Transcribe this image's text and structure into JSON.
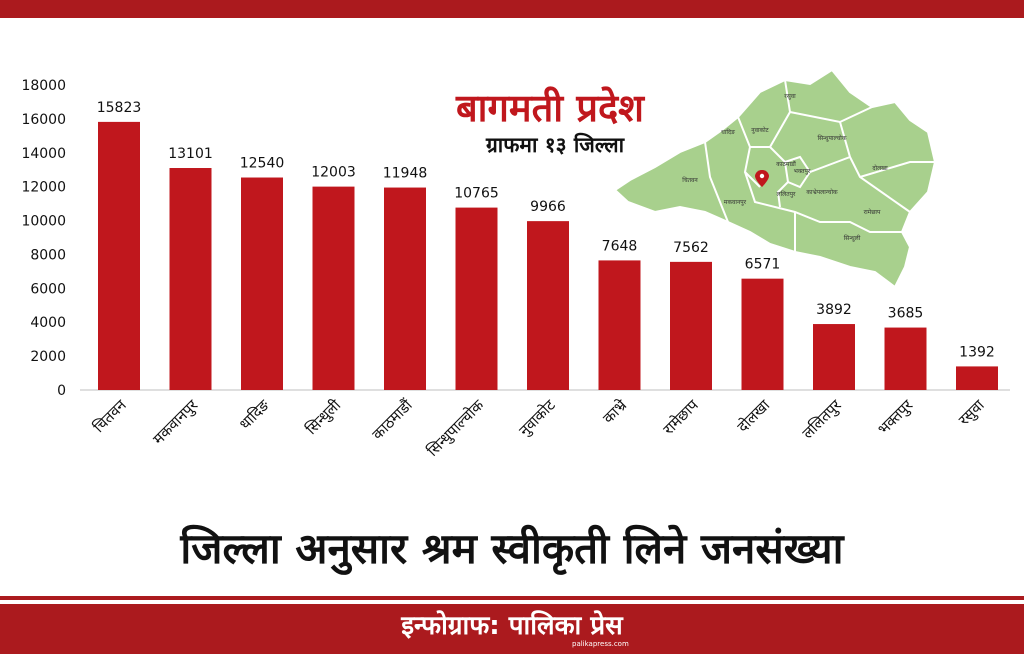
{
  "header": {
    "title": "बागमती प्रदेश",
    "subtitle": "ग्राफमा १३ जिल्ला"
  },
  "map": {
    "district_labels": [
      "रसुवा",
      "धादिङ",
      "नुवाकोट",
      "सिन्धुपाल्चोक",
      "चितवन",
      "काठमाडौं",
      "भक्तपुर",
      "दोलखा",
      "मकवानपुर",
      "ललितपुर",
      "काभ्रेपलान्चोक",
      "रामेछाप",
      "सिन्धुली"
    ],
    "fill_color": "#a8d08d",
    "border_color": "#ffffff",
    "marker_color": "#c0171d"
  },
  "chart_data": {
    "type": "bar",
    "categories": [
      "चितवन",
      "मकवानपुर",
      "धादिङ",
      "सिन्धुली",
      "काठमाडौं",
      "सिन्धुपाल्चोक",
      "नुवाकोट",
      "काभ्रे",
      "रामेछाप",
      "दोलखा",
      "ललितपुर",
      "भक्तपुर",
      "रसुवा"
    ],
    "values": [
      15823,
      13101,
      12540,
      12003,
      11948,
      10765,
      9966,
      7648,
      7562,
      6571,
      3892,
      3685,
      1392
    ],
    "ylim": [
      0,
      18000
    ],
    "yticks": [
      0,
      2000,
      4000,
      6000,
      8000,
      10000,
      12000,
      14000,
      16000,
      18000
    ],
    "bar_color": "#c0171d",
    "grid": false,
    "title": "जिल्ला अनुसार श्रम स्वीकृती लिने जनसंख्या"
  },
  "footer": {
    "credit": "इन्फोग्राफ: पालिका प्रेस",
    "site": "palikapress.com"
  },
  "colors": {
    "brand": "#ab1a1e",
    "bar": "#c0171d"
  }
}
